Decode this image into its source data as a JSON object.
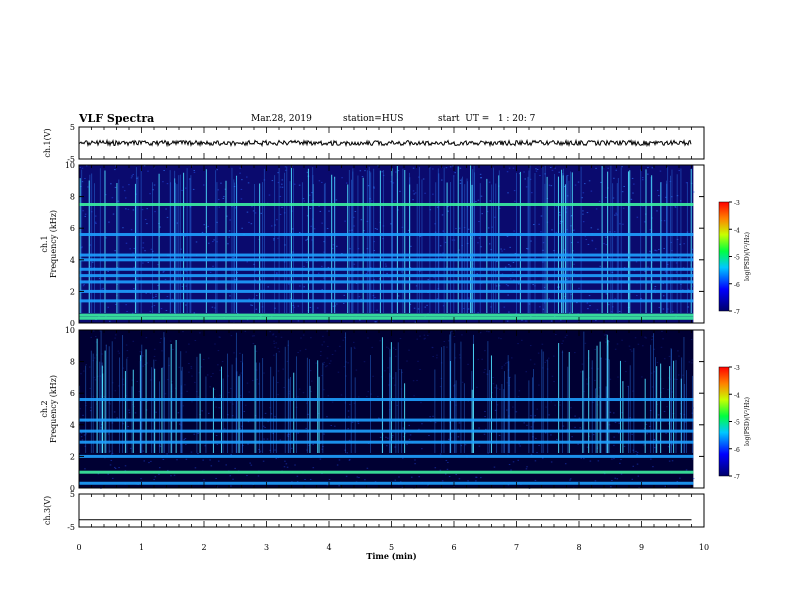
{
  "header": {
    "title": "VLF Spectra",
    "date": "Mar.28, 2019",
    "station": "station=HUS",
    "start": "start  UT =   1 : 20: 7"
  },
  "chart_data": [
    {
      "type": "line",
      "panel": "ch1-waveform",
      "ylabel": "ch.1(V)",
      "ylim": [
        -5,
        5
      ],
      "yticks": [
        "5",
        "-5"
      ],
      "xlim": [
        0,
        10
      ],
      "series": [
        {
          "values_note": "",
          "x": [
            0,
            9.8
          ],
          "y": [
            0,
            0
          ]
        }
      ]
    },
    {
      "type": "heatmap",
      "panel": "ch1-spectrogram",
      "ylabel": "ch.1\nFrequency (kHz)",
      "ylim": [
        0,
        10
      ],
      "yticks": [
        "0",
        "2",
        "4",
        "6",
        "8",
        "10"
      ],
      "xlim": [
        0,
        10
      ],
      "data_extent_min": 9.83,
      "bands_khz": [
        0.3,
        0.5,
        1.4,
        2.0,
        2.6,
        3.0,
        3.4,
        4.0,
        4.3,
        5.6,
        7.5
      ],
      "colorbar": {
        "label": "log(PSD)(V²/Hz)",
        "range": [
          -7,
          -3
        ],
        "ticks": [
          "-3",
          "-4",
          "-5",
          "-6",
          "-7"
        ]
      }
    },
    {
      "type": "heatmap",
      "panel": "ch2-spectrogram",
      "ylabel": "ch.2\nFrequency (kHz)",
      "ylim": [
        0,
        10
      ],
      "yticks": [
        "0",
        "2",
        "4",
        "6",
        "8",
        "10"
      ],
      "xlim": [
        0,
        10
      ],
      "data_extent_min": 9.83,
      "bands_khz": [
        0.3,
        1.0,
        2.0,
        2.9,
        3.6,
        4.3,
        5.6
      ],
      "colorbar": {
        "label": "log(PSD)(V²/Hz)",
        "range": [
          -7,
          -3
        ],
        "ticks": [
          "-3",
          "-4",
          "-5",
          "-6",
          "-7"
        ]
      }
    },
    {
      "type": "line",
      "panel": "ch3-waveform",
      "ylabel": "ch.3(V)",
      "ylim": [
        -5,
        5
      ],
      "yticks": [
        "5",
        "-5"
      ],
      "xlim": [
        0,
        10
      ],
      "series": [
        {
          "x": [
            0,
            9.8
          ],
          "y": [
            -2.8,
            -2.8
          ]
        }
      ]
    }
  ],
  "xaxis": {
    "label": "Time  (min)",
    "ticks": [
      "0",
      "1",
      "2",
      "3",
      "4",
      "5",
      "6",
      "7",
      "8",
      "9",
      "10"
    ]
  },
  "colors": {
    "spectrogram_bg": "#0a0a6e",
    "band": "#1ea0ff",
    "strong_band": "#3cf0a0",
    "waveform": "#000000"
  }
}
